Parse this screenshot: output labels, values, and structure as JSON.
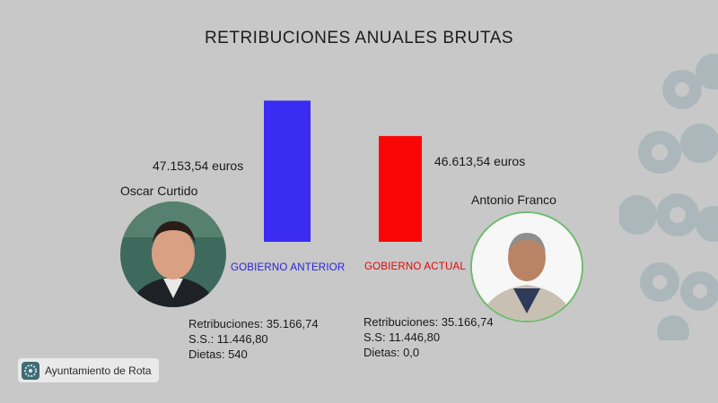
{
  "chart_data": {
    "type": "bar",
    "title": "RETRIBUCIONES ANUALES BRUTAS",
    "categories": [
      "GOBIERNO ANTERIOR",
      "GOBIERNO ACTUAL"
    ],
    "values": [
      47153.54,
      46613.54
    ],
    "value_labels": [
      "47.153,54 euros",
      "46.613,54  euros"
    ],
    "colors": [
      "#3a2cf0",
      "#fa0606"
    ],
    "ylim": [
      45000,
      47500
    ],
    "xlabel": "",
    "ylabel": "",
    "grid": false,
    "legend": "none"
  },
  "people": [
    {
      "name": "Oscar Curtido",
      "details": [
        "Retribuciones: 35.166,74",
        "S.S.: 11.446,80",
        "Dietas: 540"
      ]
    },
    {
      "name": "Antonio Franco",
      "details": [
        "Retribuciones: 35.166,74",
        "S.S: 11.446,80",
        "Dietas: 0,0"
      ]
    }
  ],
  "badge": {
    "label": "Ayuntamiento de Rota",
    "icon": "rota-logo-icon"
  },
  "colors": {
    "background": "#c8c8c8",
    "blue": "#3a2cf0",
    "red": "#fa0606"
  }
}
